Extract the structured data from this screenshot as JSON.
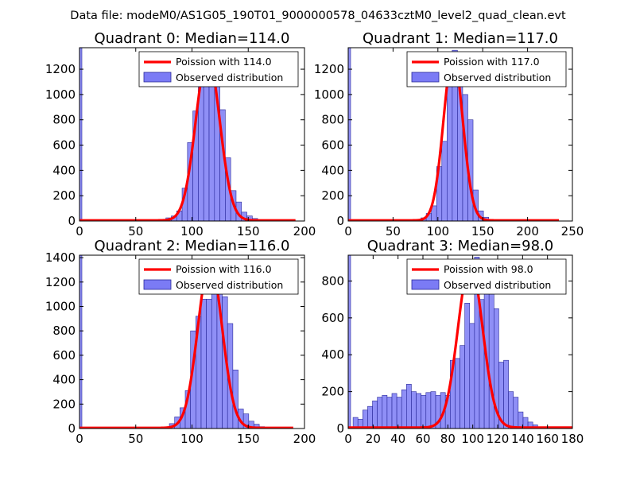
{
  "suptitle": "Data file: modeM0/AS1G05_190T01_9000000578_04633cztM0_level2_quad_clean.evt",
  "colors": {
    "poisson": "#ff0000",
    "hist_fill": "#7b7bf5",
    "hist_edge": "#2a2a9a"
  },
  "chart_data": [
    {
      "type": "bar",
      "title": "Quadrant 0: Median=114.0",
      "xlim": [
        0,
        200
      ],
      "ylim": [
        0,
        1370
      ],
      "xticks": [
        0,
        50,
        100,
        150,
        200
      ],
      "yticks": [
        0,
        200,
        400,
        600,
        800,
        1000,
        1200
      ],
      "bin_width": 4.8,
      "zero_bar": 1370,
      "hist_x": [
        62.4,
        67.2,
        72,
        76.8,
        81.6,
        86.4,
        91.2,
        96,
        100.8,
        105.6,
        110.4,
        115.2,
        120,
        124.8,
        129.6,
        134.4,
        139.2,
        144,
        148.8,
        153.6,
        158.4,
        163.2,
        168,
        172.8
      ],
      "hist_y": [
        2,
        5,
        10,
        25,
        40,
        80,
        260,
        620,
        870,
        1070,
        1080,
        1250,
        1070,
        880,
        500,
        240,
        150,
        70,
        40,
        20,
        10,
        5,
        2,
        1
      ],
      "poisson_mean": 114.0,
      "poisson_peak": 1300,
      "xmax_curve": 192,
      "legend": [
        "Poission with 114.0",
        "Observed distribution"
      ]
    },
    {
      "type": "bar",
      "title": "Quadrant 1: Median=117.0",
      "xlim": [
        0,
        250
      ],
      "ylim": [
        0,
        1370
      ],
      "xticks": [
        0,
        50,
        100,
        150,
        200,
        250
      ],
      "yticks": [
        0,
        200,
        400,
        600,
        800,
        1000,
        1200
      ],
      "bin_width": 5.8,
      "zero_bar": 1370,
      "hist_x": [
        63.8,
        69.6,
        75.4,
        81.2,
        87,
        92.8,
        98.6,
        104.4,
        110.2,
        116,
        121.8,
        127.6,
        133.4,
        139.2,
        145,
        150.8,
        156.6,
        162.4
      ],
      "hist_y": [
        2,
        5,
        12,
        25,
        60,
        120,
        430,
        630,
        1210,
        1350,
        1250,
        1000,
        800,
        245,
        80,
        30,
        10,
        3
      ],
      "poisson_mean": 117.0,
      "poisson_peak": 1300,
      "xmax_curve": 235,
      "legend": [
        "Poission with 117.0",
        "Observed distribution"
      ]
    },
    {
      "type": "bar",
      "title": "Quadrant 2: Median=116.0",
      "xlim": [
        0,
        200
      ],
      "ylim": [
        0,
        1420
      ],
      "xticks": [
        0,
        50,
        100,
        150,
        200
      ],
      "yticks": [
        0,
        200,
        400,
        600,
        800,
        1000,
        1200,
        1400
      ],
      "bin_width": 4.7,
      "zero_bar": 1420,
      "hist_x": [
        70.5,
        75.2,
        79.9,
        84.6,
        89.3,
        94,
        98.7,
        103.4,
        108.1,
        112.8,
        117.5,
        122.2,
        126.9,
        131.6,
        136.3,
        141,
        145.7,
        150.4,
        155.1,
        159.8,
        164.5
      ],
      "hist_y": [
        2,
        8,
        40,
        95,
        170,
        310,
        800,
        920,
        1060,
        1060,
        1200,
        1250,
        1080,
        860,
        480,
        160,
        120,
        60,
        35,
        15,
        5
      ],
      "poisson_mean": 116.0,
      "poisson_peak": 1360,
      "xmax_curve": 190,
      "legend": [
        "Poission with 116.0",
        "Observed distribution"
      ]
    },
    {
      "type": "bar",
      "title": "Quadrant 3: Median=98.0",
      "xlim": [
        0,
        180
      ],
      "ylim": [
        0,
        940
      ],
      "xticks": [
        0,
        20,
        40,
        60,
        80,
        100,
        120,
        140,
        160,
        180
      ],
      "yticks": [
        0,
        200,
        400,
        600,
        800
      ],
      "bin_width": 3.9,
      "zero_bar": 940,
      "hist_x": [
        3.9,
        7.8,
        11.7,
        15.6,
        19.5,
        23.4,
        27.3,
        31.2,
        35.1,
        39,
        42.9,
        46.8,
        50.7,
        54.6,
        58.5,
        62.4,
        66.3,
        70.2,
        74.1,
        78,
        81.9,
        85.8,
        89.7,
        93.6,
        97.5,
        101.4,
        105.3,
        109.2,
        113.1,
        117,
        120.9,
        124.8,
        128.7,
        132.6,
        136.5,
        140.4,
        144.3,
        148.2
      ],
      "hist_y": [
        60,
        50,
        100,
        120,
        150,
        170,
        180,
        170,
        190,
        170,
        210,
        240,
        200,
        190,
        180,
        195,
        200,
        180,
        195,
        180,
        370,
        380,
        450,
        680,
        570,
        930,
        700,
        890,
        790,
        650,
        360,
        370,
        200,
        170,
        90,
        60,
        35,
        20
      ],
      "poisson_mean": 98.0,
      "poisson_peak": 890,
      "xmax_curve": 180,
      "legend": [
        "Poission with 98.0",
        "Observed distribution"
      ]
    }
  ]
}
